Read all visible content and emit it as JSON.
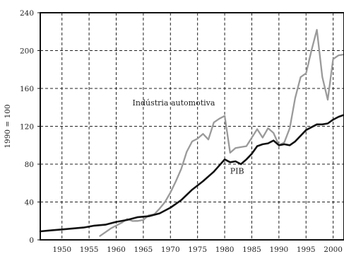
{
  "chart_data": {
    "type": "line",
    "title": "",
    "xlabel": "",
    "ylabel": "1990 = 100",
    "xlim": [
      1946,
      2002
    ],
    "ylim": [
      0,
      240
    ],
    "grid": true,
    "x_ticks": [
      1950,
      1955,
      1960,
      1965,
      1970,
      1975,
      1980,
      1985,
      1990,
      1995,
      2000
    ],
    "y_ticks": [
      0,
      40,
      80,
      120,
      160,
      200,
      240
    ],
    "tick_labels_x": [
      "1950",
      "1955",
      "1960",
      "1965",
      "1970",
      "1975",
      "1980",
      "1985",
      "1990",
      "1995",
      "2000"
    ],
    "tick_labels_y": [
      "0",
      "40",
      "80",
      "120",
      "160",
      "200",
      "240"
    ],
    "series": [
      {
        "name": "Indústria automotiva",
        "color": "#9a9a9a",
        "x": [
          1957,
          1958,
          1959,
          1960,
          1961,
          1962,
          1963,
          1964,
          1965,
          1966,
          1967,
          1968,
          1969,
          1970,
          1971,
          1972,
          1973,
          1974,
          1975,
          1976,
          1977,
          1978,
          1979,
          1980,
          1981,
          1982,
          1983,
          1984,
          1985,
          1986,
          1987,
          1988,
          1989,
          1990,
          1991,
          1992,
          1993,
          1994,
          1995,
          1996,
          1997,
          1998,
          1999,
          2000,
          2001,
          2002
        ],
        "values": [
          4,
          8,
          12,
          15,
          18,
          22,
          20,
          20,
          21,
          26,
          27,
          33,
          40,
          50,
          62,
          75,
          93,
          104,
          107,
          112,
          106,
          124,
          128,
          131,
          92,
          97,
          98,
          99,
          108,
          117,
          108,
          118,
          113,
          100,
          103,
          118,
          150,
          172,
          176,
          200,
          222,
          172,
          148,
          191,
          195,
          196
        ]
      },
      {
        "name": "PIB",
        "color": "#111111",
        "x": [
          1946,
          1948,
          1950,
          1952,
          1954,
          1956,
          1958,
          1960,
          1962,
          1964,
          1966,
          1968,
          1970,
          1972,
          1974,
          1976,
          1978,
          1980,
          1981,
          1982,
          1983,
          1984,
          1985,
          1986,
          1987,
          1988,
          1989,
          1990,
          1991,
          1992,
          1993,
          1994,
          1995,
          1996,
          1997,
          1998,
          1999,
          2000,
          2001,
          2002
        ],
        "values": [
          9,
          10,
          11,
          12,
          13,
          15,
          16,
          19,
          21,
          24,
          25,
          28,
          34,
          42,
          53,
          62,
          72,
          85,
          82,
          83,
          80,
          85,
          91,
          99,
          101,
          102,
          105,
          100,
          101,
          100,
          104,
          110,
          116,
          119,
          122,
          122,
          123,
          127,
          130,
          132
        ]
      }
    ],
    "annotations": [
      {
        "text": "Indústria automotiva",
        "x": 1963,
        "y": 142
      },
      {
        "text": "PIB",
        "x": 1981,
        "y": 70
      }
    ]
  }
}
